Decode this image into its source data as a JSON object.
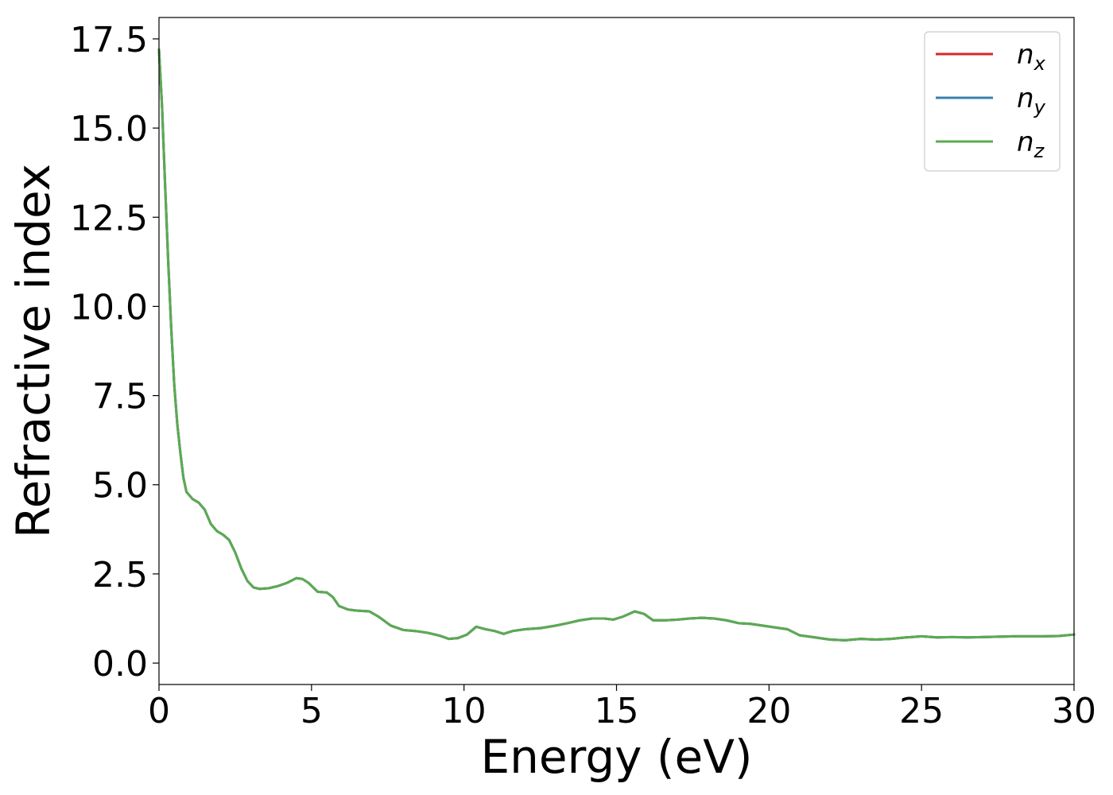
{
  "chart_data": {
    "type": "line",
    "xlabel": "Energy (eV)",
    "ylabel": "Refractive index",
    "xlim": [
      0,
      30
    ],
    "ylim": [
      -0.6,
      18.1
    ],
    "xticks": [
      0,
      5,
      10,
      15,
      20,
      25,
      30
    ],
    "xtick_labels": [
      "0",
      "5",
      "10",
      "15",
      "20",
      "25",
      "30"
    ],
    "yticks": [
      0,
      2.5,
      5,
      7.5,
      10,
      12.5,
      15,
      17.5
    ],
    "ytick_labels": [
      "0.0",
      "2.5",
      "5.0",
      "7.5",
      "10.0",
      "12.5",
      "15.0",
      "17.5"
    ],
    "grid": false,
    "legend_position": "top-right",
    "x": [
      0,
      0.1,
      0.2,
      0.3,
      0.4,
      0.5,
      0.6,
      0.7,
      0.8,
      0.9,
      1.0,
      1.1,
      1.2,
      1.3,
      1.5,
      1.7,
      1.9,
      2.1,
      2.3,
      2.5,
      2.7,
      2.9,
      3.1,
      3.3,
      3.6,
      3.9,
      4.2,
      4.5,
      4.7,
      4.9,
      5.2,
      5.5,
      5.7,
      5.9,
      6.2,
      6.5,
      6.9,
      7.2,
      7.6,
      8.0,
      8.4,
      8.8,
      9.2,
      9.5,
      9.8,
      10.1,
      10.4,
      10.7,
      11.0,
      11.3,
      11.6,
      12.0,
      12.5,
      13.0,
      13.4,
      13.8,
      14.2,
      14.6,
      14.9,
      15.2,
      15.6,
      15.9,
      16.2,
      16.6,
      17.0,
      17.4,
      17.8,
      18.2,
      18.6,
      19.0,
      19.4,
      19.8,
      20.2,
      20.6,
      21.0,
      21.5,
      22.0,
      22.5,
      23.0,
      23.5,
      24.0,
      24.5,
      25.0,
      25.5,
      26.0,
      26.5,
      27.0,
      27.5,
      28.0,
      28.5,
      29.0,
      29.5,
      30.0
    ],
    "series": [
      {
        "name": "n_x",
        "color": "#d62728",
        "values": [
          17.2,
          15.6,
          13.4,
          11.3,
          9.4,
          7.8,
          6.7,
          5.9,
          5.2,
          4.8,
          4.7,
          4.6,
          4.55,
          4.5,
          4.3,
          3.9,
          3.7,
          3.6,
          3.45,
          3.1,
          2.65,
          2.3,
          2.12,
          2.08,
          2.1,
          2.16,
          2.25,
          2.38,
          2.36,
          2.25,
          2.0,
          1.98,
          1.85,
          1.6,
          1.5,
          1.47,
          1.45,
          1.3,
          1.05,
          0.93,
          0.9,
          0.85,
          0.77,
          0.68,
          0.7,
          0.8,
          1.02,
          0.95,
          0.9,
          0.82,
          0.9,
          0.95,
          0.98,
          1.05,
          1.12,
          1.2,
          1.25,
          1.25,
          1.22,
          1.3,
          1.45,
          1.38,
          1.2,
          1.2,
          1.22,
          1.25,
          1.27,
          1.25,
          1.2,
          1.12,
          1.1,
          1.05,
          1.0,
          0.95,
          0.78,
          0.72,
          0.66,
          0.64,
          0.68,
          0.66,
          0.68,
          0.72,
          0.75,
          0.72,
          0.73,
          0.72,
          0.73,
          0.74,
          0.75,
          0.75,
          0.75,
          0.76,
          0.8
        ]
      },
      {
        "name": "n_y",
        "color": "#3a7fb0",
        "values": [
          17.2,
          15.6,
          13.4,
          11.3,
          9.4,
          7.8,
          6.7,
          5.9,
          5.2,
          4.8,
          4.7,
          4.6,
          4.55,
          4.5,
          4.3,
          3.9,
          3.7,
          3.6,
          3.45,
          3.1,
          2.65,
          2.3,
          2.12,
          2.08,
          2.1,
          2.16,
          2.25,
          2.38,
          2.36,
          2.25,
          2.0,
          1.98,
          1.85,
          1.6,
          1.5,
          1.47,
          1.45,
          1.3,
          1.05,
          0.93,
          0.9,
          0.85,
          0.77,
          0.68,
          0.7,
          0.8,
          1.02,
          0.95,
          0.9,
          0.82,
          0.9,
          0.95,
          0.98,
          1.05,
          1.12,
          1.2,
          1.25,
          1.25,
          1.22,
          1.3,
          1.45,
          1.38,
          1.2,
          1.2,
          1.22,
          1.25,
          1.27,
          1.25,
          1.2,
          1.12,
          1.1,
          1.05,
          1.0,
          0.95,
          0.78,
          0.72,
          0.66,
          0.64,
          0.68,
          0.66,
          0.68,
          0.72,
          0.75,
          0.72,
          0.73,
          0.72,
          0.73,
          0.74,
          0.75,
          0.75,
          0.75,
          0.76,
          0.8
        ]
      },
      {
        "name": "n_z",
        "color": "#5aab52",
        "values": [
          17.2,
          15.6,
          13.4,
          11.3,
          9.4,
          7.8,
          6.7,
          5.9,
          5.2,
          4.8,
          4.7,
          4.6,
          4.55,
          4.5,
          4.3,
          3.9,
          3.7,
          3.6,
          3.45,
          3.1,
          2.65,
          2.3,
          2.12,
          2.08,
          2.1,
          2.16,
          2.25,
          2.38,
          2.36,
          2.25,
          2.0,
          1.98,
          1.85,
          1.6,
          1.5,
          1.47,
          1.45,
          1.3,
          1.05,
          0.93,
          0.9,
          0.85,
          0.77,
          0.68,
          0.7,
          0.8,
          1.02,
          0.95,
          0.9,
          0.82,
          0.9,
          0.95,
          0.98,
          1.05,
          1.12,
          1.2,
          1.25,
          1.25,
          1.22,
          1.3,
          1.45,
          1.38,
          1.2,
          1.2,
          1.22,
          1.25,
          1.27,
          1.25,
          1.2,
          1.12,
          1.1,
          1.05,
          1.0,
          0.95,
          0.78,
          0.72,
          0.66,
          0.64,
          0.68,
          0.66,
          0.68,
          0.72,
          0.75,
          0.72,
          0.73,
          0.72,
          0.73,
          0.74,
          0.75,
          0.75,
          0.75,
          0.76,
          0.8
        ]
      }
    ],
    "legend": [
      {
        "base": "n",
        "sub": "x"
      },
      {
        "base": "n",
        "sub": "y"
      },
      {
        "base": "n",
        "sub": "z"
      }
    ]
  }
}
